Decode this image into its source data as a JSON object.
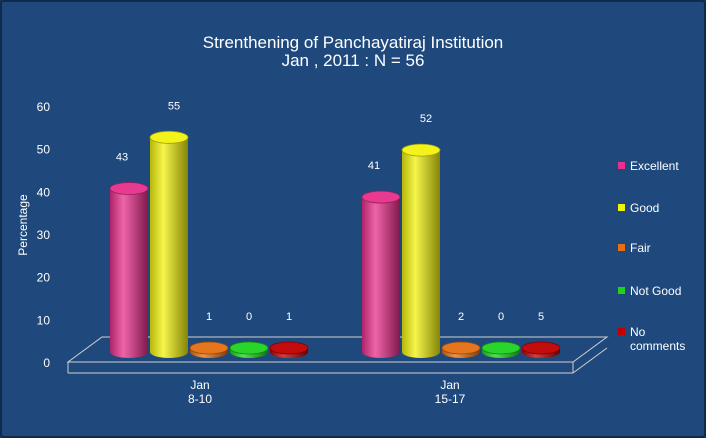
{
  "chart_data": {
    "type": "bar",
    "title": "Strenthening of Panchayatiraj Institution",
    "subtitle": "Jan , 2011 : N = 56",
    "xlabel": "",
    "ylabel": "Percentage",
    "ylim": [
      0,
      60
    ],
    "yticks": [
      "0",
      "10",
      "20",
      "30",
      "40",
      "50",
      "60"
    ],
    "categories": [
      "Jan\n8-10",
      "Jan\n15-17"
    ],
    "category_lines": [
      [
        "Jan",
        "8-10"
      ],
      [
        "Jan",
        "15-17"
      ]
    ],
    "series": [
      {
        "name": "Excellent",
        "values": [
          43,
          41
        ],
        "color": "#e8308c"
      },
      {
        "name": "Good",
        "values": [
          55,
          52
        ],
        "color": "#f2f20f"
      },
      {
        "name": "Fair",
        "values": [
          1,
          2
        ],
        "color": "#e56f12"
      },
      {
        "name": "Not Good",
        "values": [
          0,
          0
        ],
        "color": "#1fd21f"
      },
      {
        "name": "No comments",
        "values": [
          1,
          5
        ],
        "color": "#c00000"
      }
    ],
    "legend": [
      "Excellent",
      "Good",
      "Fair",
      "Not Good",
      "No\ncomments"
    ],
    "legend_position": "right",
    "grid": false,
    "style": "3d-cylinder"
  },
  "colors": {
    "background": "#1f497d",
    "text": "#ffffff",
    "floor": "#d0d0d0"
  }
}
